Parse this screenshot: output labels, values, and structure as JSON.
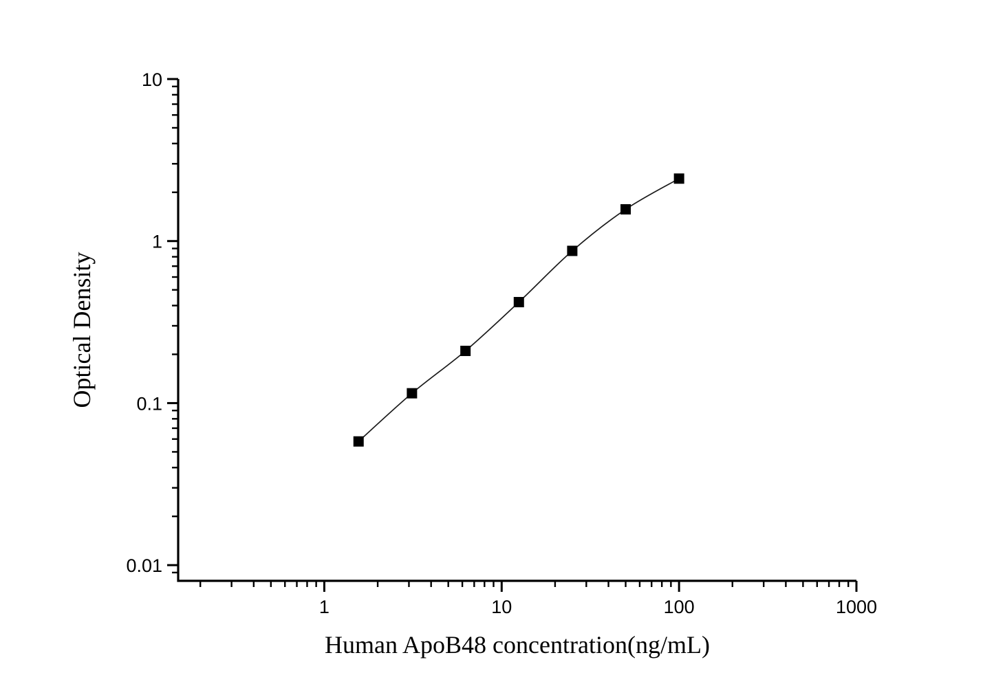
{
  "figure": {
    "background_color": "#ffffff",
    "axis_color": "#000000",
    "marker_color": "#000000",
    "curve_color": "#1a1a1a"
  },
  "chart_data": {
    "type": "line",
    "title": "",
    "xlabel": "Human ApoB48 concentration(ng/mL)",
    "ylabel": "Optical Density",
    "x_scale": "log",
    "y_scale": "log",
    "xlim": [
      0.15,
      1000
    ],
    "ylim": [
      0.008,
      10
    ],
    "grid": false,
    "legend": "none",
    "x_ticks": {
      "values": [
        1,
        10,
        100,
        1000
      ],
      "labels": [
        "1",
        "10",
        "100",
        "1000"
      ]
    },
    "y_ticks": {
      "values": [
        0.01,
        0.1,
        1,
        10
      ],
      "labels": [
        "0.01",
        "0.1",
        "1",
        "10"
      ]
    },
    "series": [
      {
        "marker": "filled-square",
        "color": "#000000",
        "x": [
          1.56,
          3.12,
          6.25,
          12.5,
          25,
          50,
          100
        ],
        "y": [
          0.058,
          0.115,
          0.21,
          0.42,
          0.87,
          1.57,
          2.43
        ]
      }
    ]
  }
}
